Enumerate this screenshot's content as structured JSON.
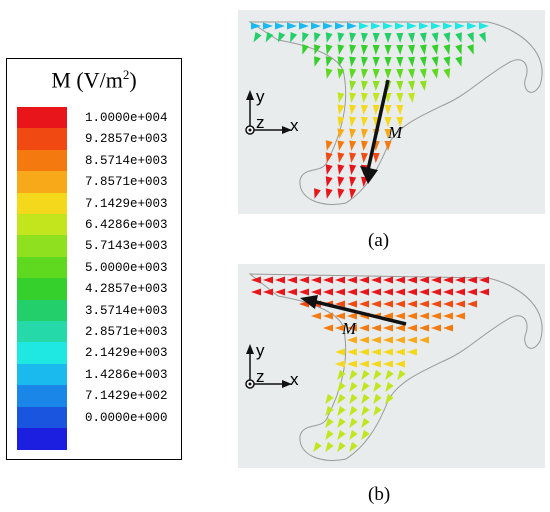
{
  "legend": {
    "title_symbol": "M (V/m",
    "title_exponent": "2",
    "title_close": ")",
    "colors": [
      "#e8151a",
      "#f04a12",
      "#f47a10",
      "#f7a91a",
      "#f3d81c",
      "#c2e51e",
      "#8fe01f",
      "#5fd820",
      "#36d02c",
      "#23cf6a",
      "#25d9a8",
      "#1fe8e2",
      "#1ab9ee",
      "#1a86e8",
      "#1a55e0",
      "#1c1ee0"
    ],
    "ticks": [
      "1.0000e+004",
      "9.2857e+003",
      "8.5714e+003",
      "7.8571e+003",
      "7.1429e+003",
      "6.4286e+003",
      "5.7143e+003",
      "5.0000e+003",
      "4.2857e+003",
      "3.5714e+003",
      "2.8571e+003",
      "2.1429e+003",
      "1.4286e+003",
      "7.1429e+002",
      "0.0000e+000"
    ]
  },
  "panels": [
    {
      "caption": "(a)",
      "axis_x": "x",
      "axis_y": "y",
      "axis_z": "z",
      "vector_label": "M"
    },
    {
      "caption": "(b)",
      "axis_x": "x",
      "axis_y": "y",
      "axis_z": "z",
      "vector_label": "M"
    }
  ]
}
